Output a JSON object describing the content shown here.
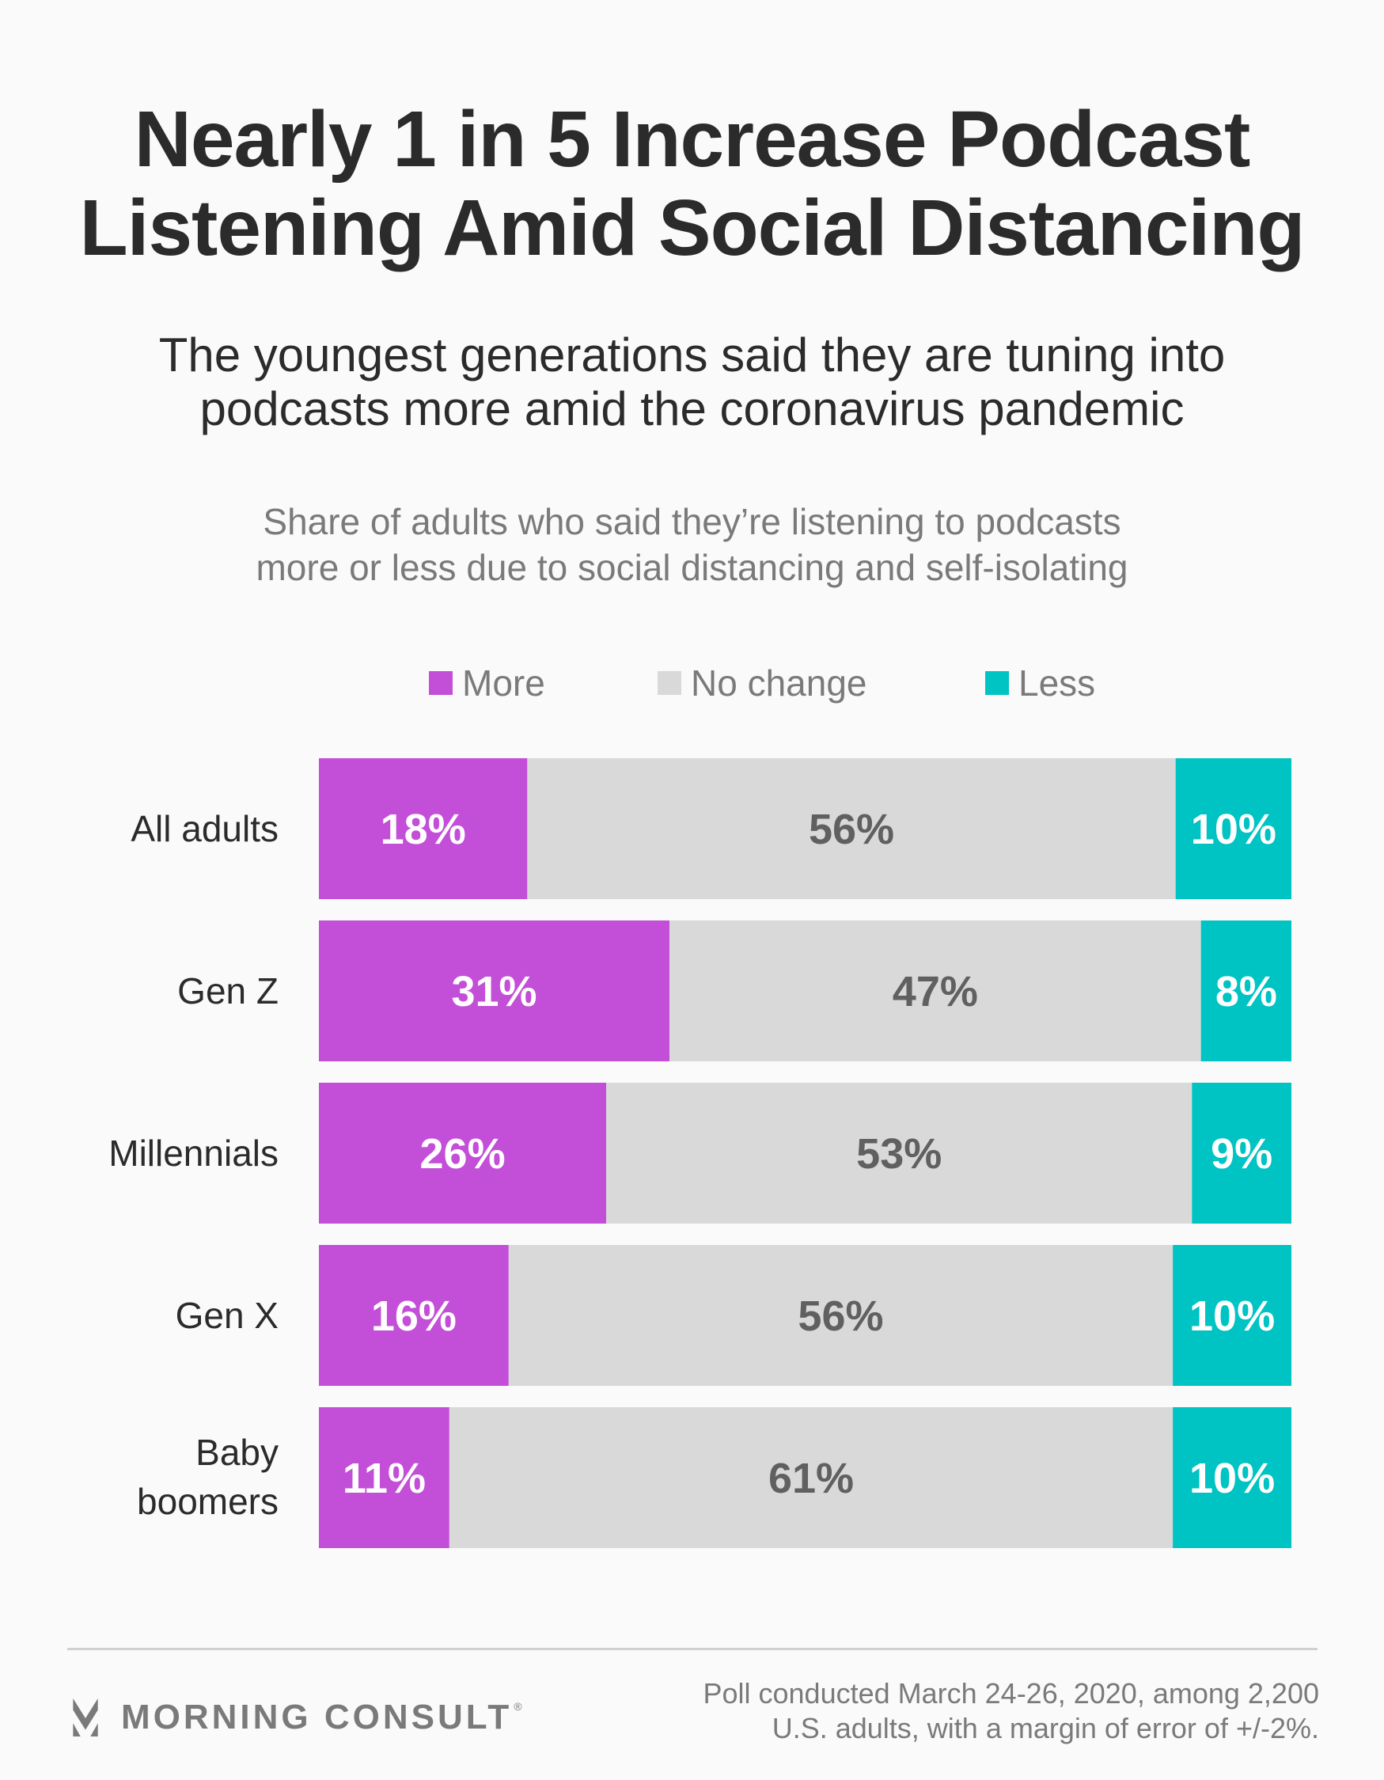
{
  "title": {
    "line1": "Nearly 1 in 5 Increase Podcast",
    "line2": "Listening Amid Social Distancing"
  },
  "subtitle": {
    "line1": "The youngest generations said they are tuning into",
    "line2": "podcasts more amid the coronavirus pandemic"
  },
  "note": {
    "line1": "Share of adults who said they’re listening to podcasts",
    "line2": "more or less due to social distancing and self-isolating"
  },
  "colors": {
    "more": "#c34fd8",
    "no_change": "#d9d9d9",
    "less": "#00c3c3",
    "label_light": "#ffffff",
    "label_dark": "#606060"
  },
  "chart_data": {
    "type": "bar",
    "orientation": "horizontal",
    "stacked": true,
    "title": "Nearly 1 in 5 Increase Podcast Listening Amid Social Distancing",
    "subtitle": "The youngest generations said they are tuning into podcasts more amid the coronavirus pandemic",
    "xlabel": "",
    "ylabel": "",
    "grid": false,
    "legend_position": "top-center",
    "categories": [
      "All adults",
      "Gen Z",
      "Millennials",
      "Gen X",
      "Baby boomers"
    ],
    "series": [
      {
        "name": "More",
        "values": [
          18,
          31,
          26,
          16,
          11
        ]
      },
      {
        "name": "No change",
        "values": [
          56,
          47,
          53,
          56,
          61
        ]
      },
      {
        "name": "Less",
        "values": [
          10,
          8,
          9,
          10,
          10
        ]
      }
    ],
    "value_suffix": "%"
  },
  "legend": {
    "items": [
      {
        "label": "More"
      },
      {
        "label": "No change"
      },
      {
        "label": "Less"
      }
    ]
  },
  "footer": {
    "brand": "MORNING CONSULT",
    "registered": "®",
    "source_line1": "Poll conducted March 24-26, 2020, among 2,200",
    "source_line2": "U.S. adults, with a margin of error of +/-2%."
  }
}
